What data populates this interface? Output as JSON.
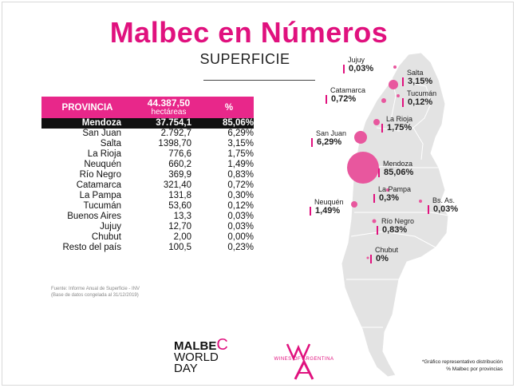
{
  "title": "Malbec en Números",
  "subtitle": "SUPERFICIE",
  "table": {
    "col_province": "PROVINCIA",
    "total_value": "44.387,50",
    "total_unit": "hectáreas",
    "col_pct": "%",
    "rows": [
      {
        "province": "Mendoza",
        "hectares": "37.754,1",
        "pct": "85,06%"
      },
      {
        "province": "San Juan",
        "hectares": "2.792,7",
        "pct": "6,29%"
      },
      {
        "province": "Salta",
        "hectares": "1398,70",
        "pct": "3,15%"
      },
      {
        "province": "La Rioja",
        "hectares": "776,6",
        "pct": "1,75%"
      },
      {
        "province": "Neuquén",
        "hectares": "660,2",
        "pct": "1,49%"
      },
      {
        "province": "Río Negro",
        "hectares": "369,9",
        "pct": "0,83%"
      },
      {
        "province": "Catamarca",
        "hectares": "321,40",
        "pct": "0,72%"
      },
      {
        "province": "La Pampa",
        "hectares": "131,8",
        "pct": "0,30%"
      },
      {
        "province": "Tucumán",
        "hectares": "53,60",
        "pct": "0,12%"
      },
      {
        "province": "Buenos Aires",
        "hectares": "13,3",
        "pct": "0,03%"
      },
      {
        "province": "Jujuy",
        "hectares": "12,70",
        "pct": "0,03%"
      },
      {
        "province": "Chubut",
        "hectares": "2,00",
        "pct": "0,00%"
      },
      {
        "province": "Resto del país",
        "hectares": "100,5",
        "pct": "0,23%"
      }
    ]
  },
  "source": {
    "line1": "Fuente: Informe Anual de Superficie - INV",
    "line2": "(Base de datos congelada al 31/12/2019)"
  },
  "map_labels": {
    "jujuy": {
      "name": "Jujuy",
      "pct": "0,03%"
    },
    "salta": {
      "name": "Salta",
      "pct": "3,15%"
    },
    "catamarca": {
      "name": "Catamarca",
      "pct": "0,72%"
    },
    "tucuman": {
      "name": "Tucumán",
      "pct": "0,12%"
    },
    "larioja": {
      "name": "La Rioja",
      "pct": "1,75%"
    },
    "sanjuan": {
      "name": "San Juan",
      "pct": "6,29%"
    },
    "mendoza": {
      "name": "Mendoza",
      "pct": "85,06%"
    },
    "lapampa": {
      "name": "La Pampa",
      "pct": "0,3%"
    },
    "bsas": {
      "name": "Bs. As.",
      "pct": "0,03%"
    },
    "neuquen": {
      "name": "Neuquén",
      "pct": "1,49%"
    },
    "rionegro": {
      "name": "Río Negro",
      "pct": "0,83%"
    },
    "chubut": {
      "name": "Chubut",
      "pct": "0%"
    }
  },
  "logos": {
    "mwd_line1": "MALBE",
    "mwd_c": "C",
    "mwd_line2": "WORLD",
    "mwd_line3": "DAY",
    "wines": "WINES OF ARGENTINA"
  },
  "note": {
    "line1": "*Gráfico representativo distribución",
    "line2": "% Malbec por provincias"
  },
  "colors": {
    "accent": "#e0117e",
    "header_bg": "#e8278a",
    "map_gray": "#e3e3e3"
  }
}
